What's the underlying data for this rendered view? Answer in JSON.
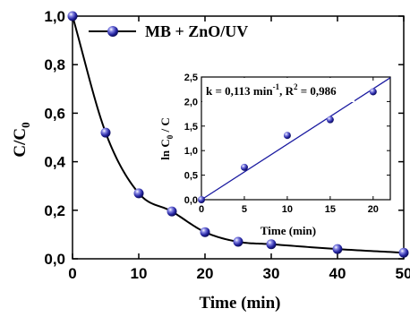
{
  "chart_data": [
    {
      "type": "scatter",
      "xlabel": "Time (min)",
      "ylabel_main": "C/C",
      "ylabel_sub": "0",
      "xlim": [
        0,
        50
      ],
      "ylim": [
        0,
        1.0
      ],
      "xticks": [
        0,
        10,
        20,
        30,
        40,
        50
      ],
      "xtick_labels": [
        "0",
        "10",
        "20",
        "30",
        "40",
        "50"
      ],
      "yticks": [
        0,
        0.2,
        0.4,
        0.6,
        0.8,
        1.0
      ],
      "ytick_labels": [
        "0,0",
        "0,2",
        "0,4",
        "0,6",
        "0,8",
        "1,0"
      ],
      "grid": false,
      "legend": "top",
      "series": [
        {
          "name": "MB + ZnO/UV",
          "marker_color": "#2828a0",
          "line_color": "#000000",
          "x": [
            0,
            5,
            10,
            15,
            20,
            25,
            30,
            40,
            50
          ],
          "y": [
            1.0,
            0.52,
            0.27,
            0.195,
            0.11,
            0.07,
            0.06,
            0.04,
            0.025
          ]
        }
      ]
    },
    {
      "type": "scatter",
      "xlabel": "Time (min)",
      "ylabel_main": "ln C",
      "ylabel_sub": "0",
      "ylabel_tail": " / C",
      "xlim": [
        0,
        22
      ],
      "ylim": [
        0,
        2.5
      ],
      "xticks": [
        0,
        5,
        10,
        15,
        20
      ],
      "xtick_labels": [
        "0",
        "5",
        "10",
        "15",
        "20"
      ],
      "yticks": [
        0,
        0.5,
        1.0,
        1.5,
        2.0,
        2.5
      ],
      "ytick_labels": [
        "0,0",
        "0,5",
        "1,0",
        "1,5",
        "2,0",
        "2,5"
      ],
      "grid": false,
      "annotation": {
        "k_part": "k = 0,113 min",
        "k_exp": "-1",
        "r_part": ", R",
        "r_exp": "2",
        "r_value": " = 0,986"
      },
      "series": [
        {
          "name": "",
          "marker_color": "#2828a0",
          "line_color": "#1a1aa0",
          "x": [
            0,
            5,
            10,
            15,
            20
          ],
          "y": [
            0.0,
            0.66,
            1.31,
            1.63,
            2.2
          ],
          "fit": {
            "slope": 0.113,
            "intercept": 0.0
          }
        }
      ]
    }
  ]
}
